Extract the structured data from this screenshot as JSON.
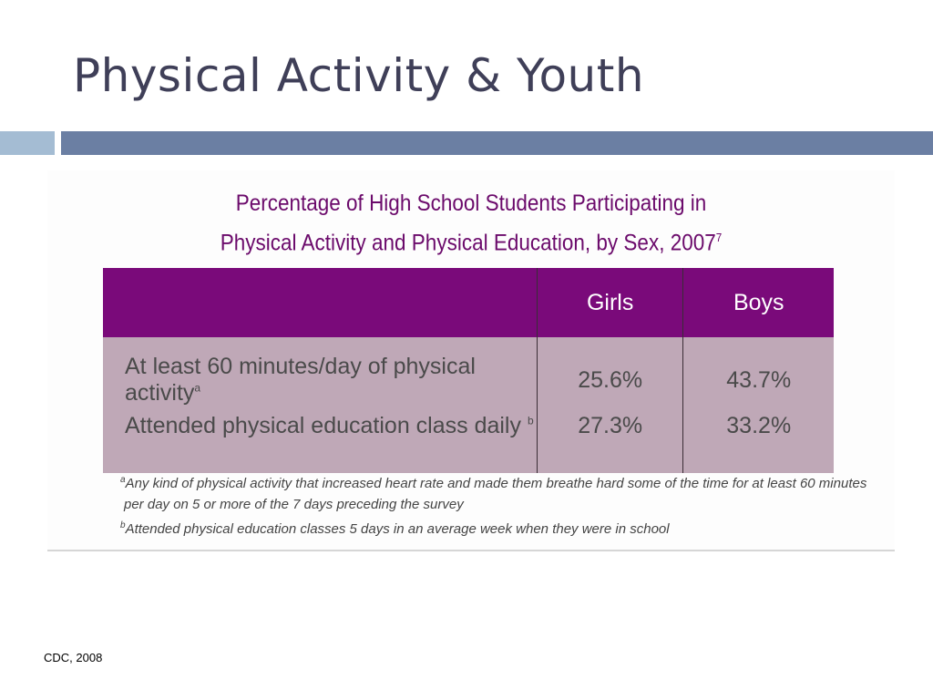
{
  "slide": {
    "title": "Physical Activity & Youth",
    "source": "CDC, 2008"
  },
  "figure": {
    "title_line1": "Percentage of High School Students Participating in",
    "title_line2": "Physical Activity and Physical Education, by Sex, 2007",
    "title_ref": "7",
    "table": {
      "columns": [
        "",
        "Girls",
        "Boys"
      ],
      "rows": [
        {
          "label": "At least 60 minutes/day of physical activity",
          "marker": "a",
          "girls": "25.6%",
          "boys": "43.7%"
        },
        {
          "label": "Attended physical education class daily",
          "marker": "b",
          "girls": "27.3%",
          "boys": "33.2%"
        }
      ]
    },
    "footnotes": [
      {
        "marker": "a",
        "text": "Any kind of physical activity that increased heart rate and made them breathe hard some of the time for at least 60 minutes"
      },
      {
        "marker": "",
        "text": "per day on 5 or more of the 7 days preceding the survey"
      },
      {
        "marker": "b",
        "text": "Attended physical education classes 5 days in an average week when they were in school"
      }
    ]
  },
  "colors": {
    "title_text": "#3f3f58",
    "accent_light": "#a4bcd3",
    "accent_dark": "#6b7fa3",
    "table_header": "#7a0a7a",
    "table_body": "#bfa8b7",
    "figure_title": "#6b0a6b"
  }
}
